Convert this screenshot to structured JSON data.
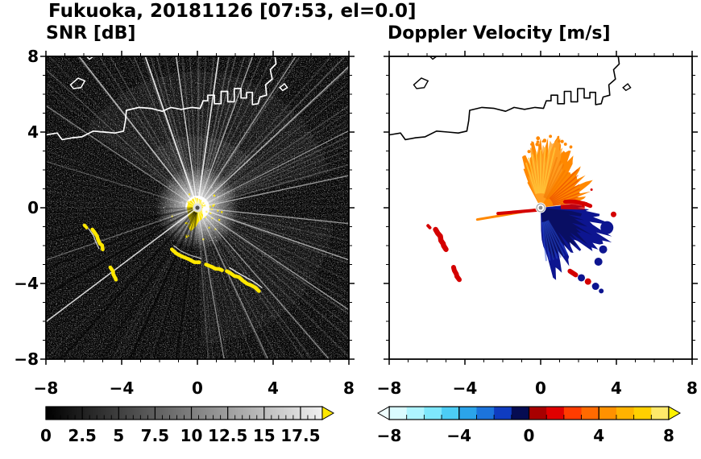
{
  "title": "Fukuoka, 20181126 [07:53, el=0.0]",
  "panels": [
    {
      "subtitle": "SNR [dB]",
      "x_tick_labels": [
        "−8",
        "−4",
        "0",
        "4",
        "8"
      ],
      "y_tick_labels": [
        "8",
        "4",
        "0",
        "−4",
        "−8"
      ],
      "colorbar": {
        "tick_labels": [
          "0",
          "2.5",
          "5",
          "7.5",
          "10",
          "12.5",
          "15",
          "17.5"
        ],
        "tick_values": [
          0,
          2.5,
          5,
          7.5,
          10,
          12.5,
          15,
          17.5
        ],
        "range": [
          0,
          19
        ],
        "start_color": "#000000",
        "end_color": "#f0f0f0",
        "over_arrow_color": "#ffe800"
      }
    },
    {
      "subtitle": "Doppler Velocity [m/s]",
      "x_tick_labels": [
        "−8",
        "−4",
        "0",
        "4",
        "8"
      ],
      "y_tick_labels": [],
      "colorbar": {
        "tick_labels": [
          "−8",
          "−4",
          "0",
          "4",
          "8"
        ],
        "tick_values": [
          -8,
          -4,
          0,
          4,
          8
        ],
        "range": [
          -8,
          8
        ],
        "segment_colors": [
          "#d9fbff",
          "#aef4ff",
          "#7ee7fc",
          "#4ccdf5",
          "#2ba4ea",
          "#1c74dc",
          "#0f3cc0",
          "#060c52",
          "#a80000",
          "#e00000",
          "#ff3c00",
          "#ff6a00",
          "#ff9100",
          "#ffb300",
          "#ffd000",
          "#ffe96a"
        ],
        "under_arrow_color": "#effeff",
        "over_arrow_color": "#fff200"
      }
    }
  ],
  "chart_data": {
    "type": "heatmap",
    "title": "Fukuoka, 20181126 [07:53, el=0.0]",
    "station": "Fukuoka",
    "date": "20181126",
    "time": "07:53",
    "elevation_deg": 0.0,
    "x_range": [
      -8,
      8
    ],
    "y_range": [
      -8,
      8
    ],
    "radar_site_xy": [
      0,
      0
    ],
    "panels": [
      {
        "name": "SNR",
        "units": "dB",
        "scale_range": [
          0,
          19
        ],
        "over_range_color": "#ffe800",
        "description": "PPI of signal-to-noise ratio: dark speckle background, bright radial streaks from the radar site, saturated yellow clutter at the site and along coastal arcs southwest and south of the site, white coastline across the north."
      },
      {
        "name": "Doppler Velocity",
        "units": "m/s",
        "scale_range": [
          -8,
          8
        ],
        "description": "PPI of Doppler velocity: orange fan (positive, ~+2 to +5 m/s) in the north-to-east sector, dark navy fan (negative, ~−1 to −3 m/s) in the east-to-south sector, red clutter patches to the southwest, black coastline across the north."
      }
    ],
    "palette": {
      "orange": "#ff8800",
      "light_orange": "#ffa126",
      "yellow": "#ffe800",
      "navy": "#0d1590",
      "dark_navy": "#060a46",
      "red": "#d40000",
      "white": "#ffffff"
    },
    "coastline": {
      "main": [
        [
          -8,
          3.85
        ],
        [
          -7.4,
          3.95
        ],
        [
          -7.15,
          3.6
        ],
        [
          -6.6,
          3.7
        ],
        [
          -6.1,
          3.75
        ],
        [
          -5.5,
          4.05
        ],
        [
          -4.9,
          4.0
        ],
        [
          -4.35,
          3.95
        ],
        [
          -3.9,
          4.05
        ],
        [
          -3.8,
          4.6
        ],
        [
          -3.75,
          5.15
        ],
        [
          -3.1,
          5.3
        ],
        [
          -2.45,
          5.25
        ],
        [
          -1.85,
          5.1
        ],
        [
          -1.4,
          5.3
        ],
        [
          -0.85,
          5.2
        ],
        [
          -0.3,
          5.3
        ],
        [
          0.15,
          5.25
        ],
        [
          0.3,
          5.65
        ],
        [
          0.55,
          5.65
        ],
        [
          0.55,
          5.95
        ],
        [
          0.9,
          5.95
        ],
        [
          0.9,
          5.5
        ],
        [
          1.25,
          5.5
        ],
        [
          1.25,
          6.15
        ],
        [
          1.6,
          6.15
        ],
        [
          1.6,
          5.6
        ],
        [
          1.95,
          5.6
        ],
        [
          1.95,
          6.3
        ],
        [
          2.3,
          6.3
        ],
        [
          2.3,
          5.8
        ],
        [
          2.6,
          5.8
        ],
        [
          2.6,
          6.1
        ],
        [
          2.9,
          6.1
        ],
        [
          2.9,
          5.45
        ],
        [
          3.2,
          5.5
        ],
        [
          3.3,
          5.85
        ],
        [
          3.65,
          5.95
        ],
        [
          3.6,
          6.5
        ],
        [
          3.95,
          6.8
        ],
        [
          3.85,
          7.3
        ],
        [
          4.15,
          7.6
        ],
        [
          4.1,
          8.0
        ]
      ],
      "islands": [
        [
          [
            -6.7,
            6.5
          ],
          [
            -6.3,
            6.85
          ],
          [
            -5.95,
            6.7
          ],
          [
            -6.15,
            6.35
          ],
          [
            -6.55,
            6.3
          ]
        ],
        [
          [
            4.35,
            6.35
          ],
          [
            4.6,
            6.55
          ],
          [
            4.75,
            6.35
          ],
          [
            4.5,
            6.2
          ]
        ],
        [
          [
            -5.7,
            7.85
          ],
          [
            -5.5,
            8.0
          ],
          [
            -5.85,
            8.0
          ]
        ]
      ]
    },
    "clutter_arcs": {
      "A": [
        [
          -1.35,
          -2.2
        ],
        [
          -0.95,
          -2.5
        ],
        [
          -0.45,
          -2.72
        ],
        [
          0.1,
          -2.88
        ]
      ],
      "B": [
        [
          0.45,
          -3.0
        ],
        [
          0.95,
          -3.22
        ],
        [
          1.3,
          -3.3
        ]
      ],
      "C": [
        [
          1.55,
          -3.35
        ],
        [
          1.95,
          -3.6
        ],
        [
          2.4,
          -3.85
        ],
        [
          2.85,
          -4.1
        ],
        [
          3.25,
          -4.4
        ]
      ],
      "D": [
        [
          -5.55,
          -1.15
        ],
        [
          -5.3,
          -1.5
        ],
        [
          -5.15,
          -1.9
        ],
        [
          -5.0,
          -2.2
        ]
      ],
      "E": [
        [
          -4.6,
          -3.15
        ],
        [
          -4.45,
          -3.5
        ],
        [
          -4.3,
          -3.8
        ]
      ],
      "F": [
        [
          -5.95,
          -0.95
        ],
        [
          -5.85,
          -1.05
        ]
      ]
    },
    "snr_center_blob": [
      [
        -0.15,
        0.55
      ],
      [
        0.2,
        0.42
      ],
      [
        0.34,
        0.12
      ],
      [
        0.25,
        -0.2
      ],
      [
        0.28,
        -0.55
      ],
      [
        0.05,
        -0.75
      ],
      [
        -0.12,
        -1.05
      ],
      [
        -0.35,
        -1.25
      ],
      [
        -0.5,
        -1.0
      ],
      [
        -0.38,
        -0.7
      ],
      [
        -0.5,
        -0.35
      ],
      [
        -0.55,
        0.0
      ],
      [
        -0.45,
        0.3
      ]
    ],
    "velocity_fans": {
      "orange_keys": [
        [
          -28,
          1.6
        ],
        [
          -20,
          2.5
        ],
        [
          -12,
          2.9
        ],
        [
          -4,
          3.1
        ],
        [
          4,
          3.3
        ],
        [
          12,
          3.45
        ],
        [
          20,
          3.2
        ],
        [
          28,
          3.0
        ],
        [
          36,
          2.6
        ],
        [
          44,
          3.1
        ],
        [
          52,
          2.75
        ],
        [
          60,
          2.6
        ],
        [
          68,
          2.45
        ],
        [
          76,
          2.2
        ],
        [
          82,
          1.9
        ]
      ],
      "blue_keys": [
        [
          84,
          1.9
        ],
        [
          92,
          2.4
        ],
        [
          100,
          2.9
        ],
        [
          108,
          3.3
        ],
        [
          116,
          3.6
        ],
        [
          124,
          3.35
        ],
        [
          132,
          3.0
        ],
        [
          140,
          2.7
        ],
        [
          148,
          2.75
        ],
        [
          156,
          3.0
        ],
        [
          164,
          3.25
        ],
        [
          170,
          3.3
        ],
        [
          175,
          2.3
        ],
        [
          179,
          1.2
        ]
      ],
      "orange_ray": [
        [
          -0.15,
          -0.08
        ],
        [
          -3.35,
          -0.62
        ]
      ],
      "red_ray": [
        [
          -0.1,
          -0.12
        ],
        [
          -2.25,
          -0.3
        ]
      ],
      "boundary_red_arc": [
        [
          1.3,
          0.32
        ],
        [
          1.8,
          0.33
        ],
        [
          2.3,
          0.22
        ],
        [
          2.62,
          0.1
        ]
      ]
    }
  }
}
